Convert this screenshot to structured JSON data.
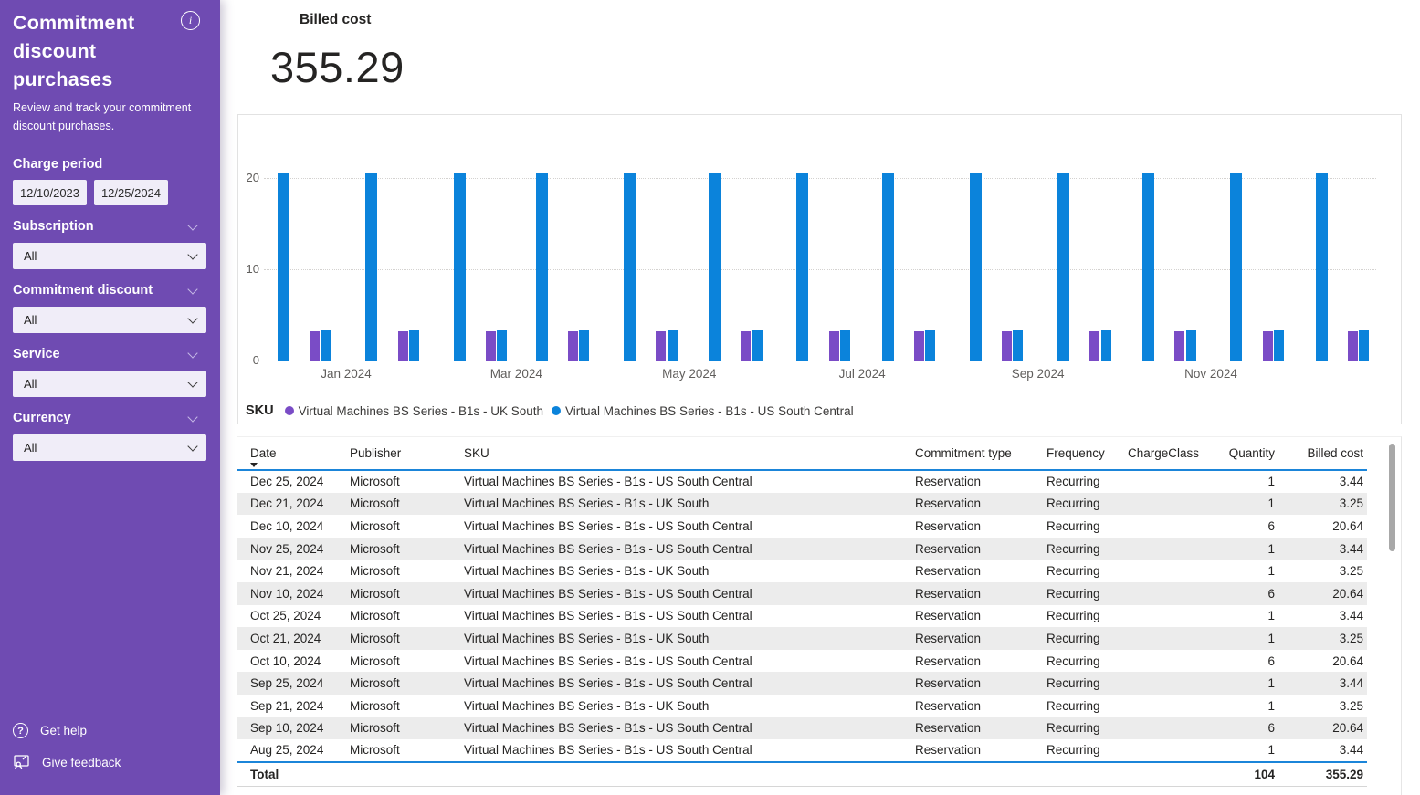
{
  "sidebar": {
    "title": "Commitment discount purchases",
    "subtitle": "Review and track your commitment discount purchases.",
    "background_color": "#6F4BB2",
    "charge_period": {
      "label": "Charge period",
      "start": "12/10/2023",
      "end": "12/25/2024"
    },
    "filters": [
      {
        "label": "Subscription",
        "value": "All"
      },
      {
        "label": "Commitment discount",
        "value": "All"
      },
      {
        "label": "Service",
        "value": "All"
      },
      {
        "label": "Currency",
        "value": "All"
      }
    ],
    "footer": {
      "help": "Get help",
      "feedback": "Give feedback"
    }
  },
  "kpi": {
    "label": "Billed cost",
    "value": "355.29"
  },
  "chart_data": {
    "type": "bar",
    "title": "",
    "legend_title": "SKU",
    "legend_position": "bottom",
    "grid": "horizontal-dotted",
    "ylim": [
      0,
      20
    ],
    "yticks": [
      0,
      10,
      20
    ],
    "x_axis": {
      "start": "2023-12-03",
      "end": "2024-12-28",
      "ticks": [
        {
          "label": "Jan 2024",
          "date": "2024-01-01"
        },
        {
          "label": "Mar 2024",
          "date": "2024-03-01"
        },
        {
          "label": "May 2024",
          "date": "2024-05-01"
        },
        {
          "label": "Jul 2024",
          "date": "2024-07-01"
        },
        {
          "label": "Sep 2024",
          "date": "2024-09-01"
        },
        {
          "label": "Nov 2024",
          "date": "2024-11-01"
        }
      ]
    },
    "series": [
      {
        "name": "Virtual Machines BS Series - B1s - UK South",
        "color": "#7A4CC6",
        "points": [
          {
            "date": "2023-12-21",
            "value": 3.25
          },
          {
            "date": "2024-01-21",
            "value": 3.25
          },
          {
            "date": "2024-02-21",
            "value": 3.25
          },
          {
            "date": "2024-03-21",
            "value": 3.25
          },
          {
            "date": "2024-04-21",
            "value": 3.25
          },
          {
            "date": "2024-05-21",
            "value": 3.25
          },
          {
            "date": "2024-06-21",
            "value": 3.25
          },
          {
            "date": "2024-07-21",
            "value": 3.25
          },
          {
            "date": "2024-08-21",
            "value": 3.25
          },
          {
            "date": "2024-09-21",
            "value": 3.25
          },
          {
            "date": "2024-10-21",
            "value": 3.25
          },
          {
            "date": "2024-11-21",
            "value": 3.25
          },
          {
            "date": "2024-12-21",
            "value": 3.25
          }
        ]
      },
      {
        "name": "Virtual Machines BS Series - B1s - US South Central",
        "color": "#0B83DB",
        "points": [
          {
            "date": "2023-12-10",
            "value": 20.64
          },
          {
            "date": "2023-12-25",
            "value": 3.44
          },
          {
            "date": "2024-01-10",
            "value": 20.64
          },
          {
            "date": "2024-01-25",
            "value": 3.44
          },
          {
            "date": "2024-02-10",
            "value": 20.64
          },
          {
            "date": "2024-02-25",
            "value": 3.44
          },
          {
            "date": "2024-03-10",
            "value": 20.64
          },
          {
            "date": "2024-03-25",
            "value": 3.44
          },
          {
            "date": "2024-04-10",
            "value": 20.64
          },
          {
            "date": "2024-04-25",
            "value": 3.44
          },
          {
            "date": "2024-05-10",
            "value": 20.64
          },
          {
            "date": "2024-05-25",
            "value": 3.44
          },
          {
            "date": "2024-06-10",
            "value": 20.64
          },
          {
            "date": "2024-06-25",
            "value": 3.44
          },
          {
            "date": "2024-07-10",
            "value": 20.64
          },
          {
            "date": "2024-07-25",
            "value": 3.44
          },
          {
            "date": "2024-08-10",
            "value": 20.64
          },
          {
            "date": "2024-08-25",
            "value": 3.44
          },
          {
            "date": "2024-09-10",
            "value": 20.64
          },
          {
            "date": "2024-09-25",
            "value": 3.44
          },
          {
            "date": "2024-10-10",
            "value": 20.64
          },
          {
            "date": "2024-10-25",
            "value": 3.44
          },
          {
            "date": "2024-11-10",
            "value": 20.64
          },
          {
            "date": "2024-11-25",
            "value": 3.44
          },
          {
            "date": "2024-12-10",
            "value": 20.64
          },
          {
            "date": "2024-12-25",
            "value": 3.44
          }
        ]
      }
    ]
  },
  "table": {
    "columns": [
      "Date",
      "Publisher",
      "SKU",
      "Commitment type",
      "Frequency",
      "ChargeClass",
      "Quantity",
      "Billed cost"
    ],
    "sorted_by": {
      "column": "Date",
      "direction": "desc"
    },
    "rows": [
      [
        "Dec 25, 2024",
        "Microsoft",
        "Virtual Machines BS Series - B1s - US South Central",
        "Reservation",
        "Recurring",
        "",
        "1",
        "3.44"
      ],
      [
        "Dec 21, 2024",
        "Microsoft",
        "Virtual Machines BS Series - B1s - UK South",
        "Reservation",
        "Recurring",
        "",
        "1",
        "3.25"
      ],
      [
        "Dec 10, 2024",
        "Microsoft",
        "Virtual Machines BS Series - B1s - US South Central",
        "Reservation",
        "Recurring",
        "",
        "6",
        "20.64"
      ],
      [
        "Nov 25, 2024",
        "Microsoft",
        "Virtual Machines BS Series - B1s - US South Central",
        "Reservation",
        "Recurring",
        "",
        "1",
        "3.44"
      ],
      [
        "Nov 21, 2024",
        "Microsoft",
        "Virtual Machines BS Series - B1s - UK South",
        "Reservation",
        "Recurring",
        "",
        "1",
        "3.25"
      ],
      [
        "Nov 10, 2024",
        "Microsoft",
        "Virtual Machines BS Series - B1s - US South Central",
        "Reservation",
        "Recurring",
        "",
        "6",
        "20.64"
      ],
      [
        "Oct 25, 2024",
        "Microsoft",
        "Virtual Machines BS Series - B1s - US South Central",
        "Reservation",
        "Recurring",
        "",
        "1",
        "3.44"
      ],
      [
        "Oct 21, 2024",
        "Microsoft",
        "Virtual Machines BS Series - B1s - UK South",
        "Reservation",
        "Recurring",
        "",
        "1",
        "3.25"
      ],
      [
        "Oct 10, 2024",
        "Microsoft",
        "Virtual Machines BS Series - B1s - US South Central",
        "Reservation",
        "Recurring",
        "",
        "6",
        "20.64"
      ],
      [
        "Sep 25, 2024",
        "Microsoft",
        "Virtual Machines BS Series - B1s - US South Central",
        "Reservation",
        "Recurring",
        "",
        "1",
        "3.44"
      ],
      [
        "Sep 21, 2024",
        "Microsoft",
        "Virtual Machines BS Series - B1s - UK South",
        "Reservation",
        "Recurring",
        "",
        "1",
        "3.25"
      ],
      [
        "Sep 10, 2024",
        "Microsoft",
        "Virtual Machines BS Series - B1s - US South Central",
        "Reservation",
        "Recurring",
        "",
        "6",
        "20.64"
      ],
      [
        "Aug 25, 2024",
        "Microsoft",
        "Virtual Machines BS Series - B1s - US South Central",
        "Reservation",
        "Recurring",
        "",
        "1",
        "3.44"
      ]
    ],
    "total": {
      "label": "Total",
      "quantity": "104",
      "billed_cost": "355.29"
    }
  }
}
